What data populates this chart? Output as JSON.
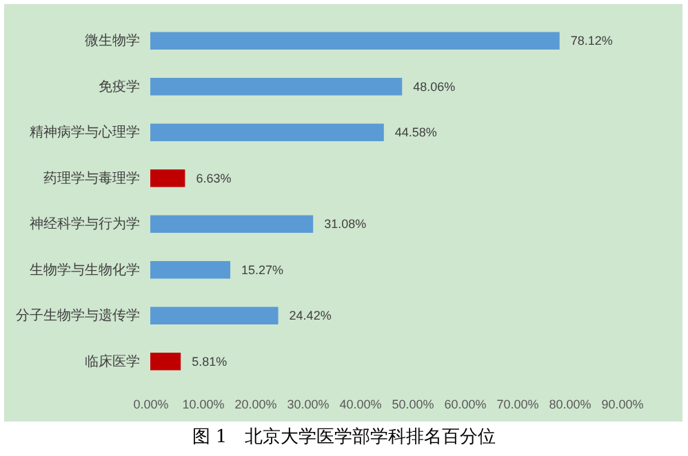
{
  "chart_data": {
    "type": "bar",
    "orientation": "horizontal",
    "title": "图 1　北京大学医学部学科排名百分位",
    "categories": [
      "微生物学",
      "免疫学",
      "精神病学与心理学",
      "药理学与毒理学",
      "神经科学与行为学",
      "生物学与生物化学",
      "分子生物学与遗传学",
      "临床医学"
    ],
    "values": [
      78.12,
      48.06,
      44.58,
      6.63,
      31.08,
      15.27,
      24.42,
      5.81
    ],
    "colors": [
      "#5b9bd5",
      "#5b9bd5",
      "#5b9bd5",
      "#c00000",
      "#5b9bd5",
      "#5b9bd5",
      "#5b9bd5",
      "#c00000"
    ],
    "value_labels": [
      "78.12%",
      "48.06%",
      "44.58%",
      "6.63%",
      "31.08%",
      "15.27%",
      "24.42%",
      "5.81%"
    ],
    "xlim": [
      0,
      90
    ],
    "xticks": [
      {
        "value": 0,
        "label": "0.00%"
      },
      {
        "value": 10,
        "label": "10.00%"
      },
      {
        "value": 20,
        "label": "20.00%"
      },
      {
        "value": 30,
        "label": "30.00%"
      },
      {
        "value": 40,
        "label": "40.00%"
      },
      {
        "value": 50,
        "label": "50.00%"
      },
      {
        "value": 60,
        "label": "60.00%"
      },
      {
        "value": 70,
        "label": "70.00%"
      },
      {
        "value": 80,
        "label": "80.00%"
      },
      {
        "value": 90,
        "label": "90.00%"
      }
    ],
    "grid": false
  }
}
